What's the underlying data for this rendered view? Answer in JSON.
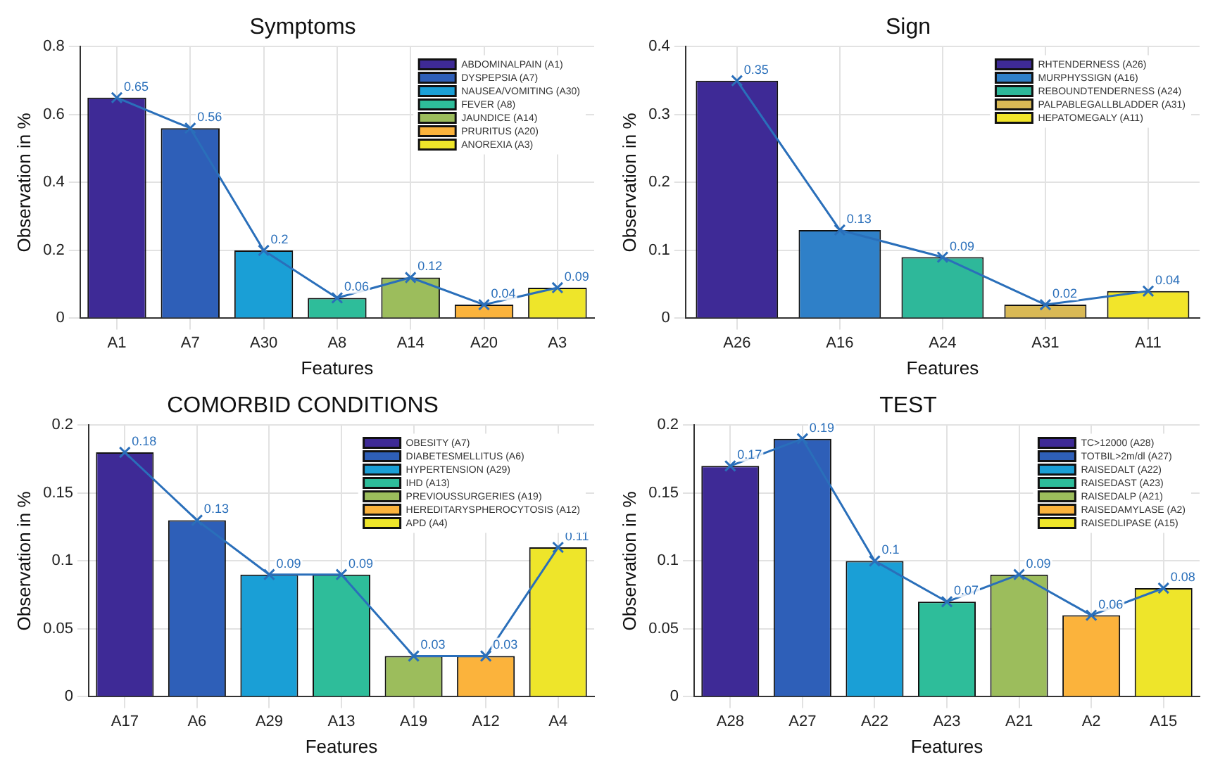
{
  "chart_data": [
    {
      "type": "bar",
      "title": "Symptoms",
      "xlabel": "Features",
      "ylabel": "Observation in %",
      "categories": [
        "A1",
        "A7",
        "A30",
        "A8",
        "A14",
        "A20",
        "A3"
      ],
      "ylim": [
        0,
        0.8
      ],
      "yticks": [
        0,
        0.2,
        0.4,
        0.6,
        0.8
      ],
      "grid": true,
      "legend": "top right",
      "series": [
        {
          "name": "ABDOMINALPAIN (A1)",
          "color": "#3e2a96",
          "values": [
            0.65,
            null,
            null,
            null,
            null,
            null,
            null
          ]
        },
        {
          "name": "DYSPEPSIA (A7)",
          "color": "#2e5fb8",
          "values": [
            null,
            0.56,
            null,
            null,
            null,
            null,
            null
          ]
        },
        {
          "name": "NAUSEA/VOMITING (A30)",
          "color": "#1a9fd6",
          "values": [
            null,
            null,
            0.2,
            null,
            null,
            null,
            null
          ]
        },
        {
          "name": "FEVER (A8)",
          "color": "#2ebd9a",
          "values": [
            null,
            null,
            null,
            0.06,
            null,
            null,
            null
          ]
        },
        {
          "name": "JAUNDICE (A14)",
          "color": "#9cbd5c",
          "values": [
            null,
            null,
            null,
            null,
            0.12,
            null,
            null
          ]
        },
        {
          "name": "PRURITUS (A20)",
          "color": "#fbb33c",
          "values": [
            null,
            null,
            null,
            null,
            null,
            0.04,
            null
          ]
        },
        {
          "name": "ANOREXIA (A3)",
          "color": "#eee52a",
          "values": [
            null,
            null,
            null,
            null,
            null,
            null,
            0.09
          ]
        },
        {
          "type": "line",
          "color": "#2a6fba",
          "marker": "cross",
          "values": [
            0.65,
            0.56,
            0.2,
            0.06,
            0.12,
            0.04,
            0.09
          ],
          "value_labels": [
            "0.65",
            "0.56",
            "0.2",
            "0.06",
            "0.12",
            "0.04",
            "0.09"
          ]
        }
      ]
    },
    {
      "type": "bar",
      "title": "Sign",
      "xlabel": "Features",
      "ylabel": "Observation in %",
      "categories": [
        "A26",
        "A16",
        "A24",
        "A31",
        "A11"
      ],
      "ylim": [
        0,
        0.4
      ],
      "yticks": [
        0,
        0.1,
        0.2,
        0.3,
        0.4
      ],
      "grid": true,
      "legend": "top right",
      "series": [
        {
          "name": "RHTENDERNESS (A26)",
          "color": "#3e2a96",
          "values": [
            0.35,
            null,
            null,
            null,
            null
          ]
        },
        {
          "name": "MURPHYSSIGN (A16)",
          "color": "#2f80c8",
          "values": [
            null,
            0.13,
            null,
            null,
            null
          ]
        },
        {
          "name": "REBOUNDTENDERNESS (A24)",
          "color": "#2eb89a",
          "values": [
            null,
            null,
            0.09,
            null,
            null
          ]
        },
        {
          "name": "PALPABLEGALLBLADDER (A31)",
          "color": "#d9b955",
          "values": [
            null,
            null,
            null,
            0.02,
            null
          ]
        },
        {
          "name": "HEPATOMEGALY (A11)",
          "color": "#f2e52a",
          "values": [
            null,
            null,
            null,
            null,
            0.04
          ]
        },
        {
          "type": "line",
          "color": "#2a6fba",
          "marker": "cross",
          "values": [
            0.35,
            0.13,
            0.09,
            0.02,
            0.04
          ],
          "value_labels": [
            "0.35",
            "0.13",
            "0.09",
            "0.02",
            "0.04"
          ]
        }
      ]
    },
    {
      "type": "bar",
      "title": "COMORBID CONDITIONS",
      "xlabel": "Features",
      "ylabel": "Observation in %",
      "categories": [
        "A17",
        "A6",
        "A29",
        "A13",
        "A19",
        "A12",
        "A4"
      ],
      "ylim": [
        0,
        0.2
      ],
      "yticks": [
        0,
        0.05,
        0.1,
        0.15,
        0.2
      ],
      "grid": true,
      "legend": "top right",
      "series": [
        {
          "name": "OBESITY (A7)",
          "color": "#3e2a96",
          "values": [
            0.18,
            null,
            null,
            null,
            null,
            null,
            null
          ]
        },
        {
          "name": "DIABETESMELLITUS (A6)",
          "color": "#2e5fb8",
          "values": [
            null,
            0.13,
            null,
            null,
            null,
            null,
            null
          ]
        },
        {
          "name": "HYPERTENSION (A29)",
          "color": "#1a9fd6",
          "values": [
            null,
            null,
            0.09,
            null,
            null,
            null,
            null
          ]
        },
        {
          "name": "IHD (A13)",
          "color": "#2ebd9a",
          "values": [
            null,
            null,
            null,
            0.09,
            null,
            null,
            null
          ]
        },
        {
          "name": "PREVIOUSSURGERIES (A19)",
          "color": "#9cbd5c",
          "values": [
            null,
            null,
            null,
            null,
            0.03,
            null,
            null
          ]
        },
        {
          "name": "HEREDITARYSPHEROCYTOSIS (A12)",
          "color": "#fbb33c",
          "values": [
            null,
            null,
            null,
            null,
            null,
            0.03,
            null
          ]
        },
        {
          "name": "APD (A4)",
          "color": "#eee52a",
          "values": [
            null,
            null,
            null,
            null,
            null,
            null,
            0.11
          ]
        },
        {
          "type": "line",
          "color": "#2a6fba",
          "marker": "cross",
          "values": [
            0.18,
            0.13,
            0.09,
            0.09,
            0.03,
            0.03,
            0.11
          ],
          "value_labels": [
            "0.18",
            "0.13",
            "0.09",
            "0.09",
            "0.03",
            "0.03",
            "0.11"
          ]
        }
      ]
    },
    {
      "type": "bar",
      "title": "TEST",
      "xlabel": "Features",
      "ylabel": "Observation in %",
      "categories": [
        "A28",
        "A27",
        "A22",
        "A23",
        "A21",
        "A2",
        "A15"
      ],
      "ylim": [
        0,
        0.2
      ],
      "yticks": [
        0,
        0.05,
        0.1,
        0.15,
        0.2
      ],
      "grid": true,
      "legend": "top right",
      "series": [
        {
          "name": "TC>12000 (A28)",
          "color": "#3e2a96",
          "values": [
            0.17,
            null,
            null,
            null,
            null,
            null,
            null
          ]
        },
        {
          "name": "TOTBIL>2m/dl (A27)",
          "color": "#2e5fb8",
          "values": [
            null,
            0.19,
            null,
            null,
            null,
            null,
            null
          ]
        },
        {
          "name": "RAISEDALT (A22)",
          "color": "#1a9fd6",
          "values": [
            null,
            null,
            0.1,
            null,
            null,
            null,
            null
          ]
        },
        {
          "name": "RAISEDAST (A23)",
          "color": "#2ebd9a",
          "values": [
            null,
            null,
            null,
            0.07,
            null,
            null,
            null
          ]
        },
        {
          "name": "RAISEDALP (A21)",
          "color": "#9cbd5c",
          "values": [
            null,
            null,
            null,
            null,
            0.09,
            null,
            null
          ]
        },
        {
          "name": "RAISEDAMYLASE (A2)",
          "color": "#fbb33c",
          "values": [
            null,
            null,
            null,
            null,
            null,
            0.06,
            null
          ]
        },
        {
          "name": "RAISEDLIPASE (A15)",
          "color": "#eee52a",
          "values": [
            null,
            null,
            null,
            null,
            null,
            null,
            0.08
          ]
        },
        {
          "type": "line",
          "color": "#2a6fba",
          "marker": "cross",
          "values": [
            0.17,
            0.19,
            0.1,
            0.07,
            0.09,
            0.06,
            0.08
          ],
          "value_labels": [
            "0.17",
            "0.19",
            "0.1",
            "0.07",
            "0.09",
            "0.06",
            "0.08"
          ]
        }
      ]
    }
  ]
}
